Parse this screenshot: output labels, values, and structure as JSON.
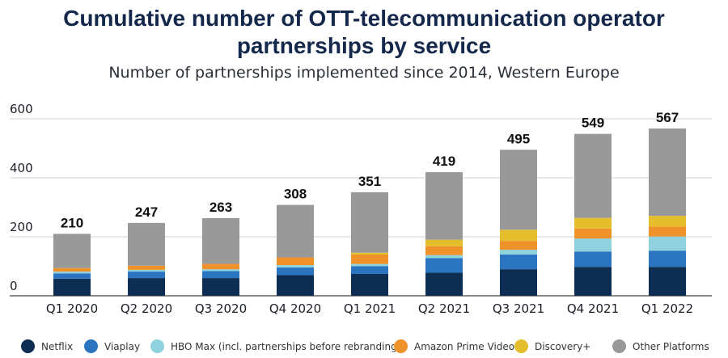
{
  "chart_data": {
    "type": "stacked-bar",
    "title_line1": "Cumulative number of OTT-telecommunication operator",
    "title_line2": "partnerships by service",
    "subtitle": "Number of partnerships implemented since 2014, Western Europe",
    "categories": [
      "Q1 2020",
      "Q2 2020",
      "Q3 2020",
      "Q4 2020",
      "Q1 2021",
      "Q2 2021",
      "Q3 2021",
      "Q4 2021",
      "Q1 2022"
    ],
    "totals": [
      210,
      247,
      263,
      308,
      351,
      419,
      495,
      549,
      567
    ],
    "yticks": [
      0,
      200,
      400,
      600
    ],
    "ylim": [
      0,
      600
    ],
    "series": [
      {
        "name": "Netflix",
        "color": "#0d2d52",
        "values": [
          58,
          60,
          60,
          70,
          74,
          78,
          90,
          98,
          98
        ]
      },
      {
        "name": "Viaplay",
        "color": "#2b74bf",
        "values": [
          18,
          22,
          24,
          26,
          26,
          50,
          50,
          52,
          55
        ]
      },
      {
        "name": "HBO Max (incl. partnerships before rebranding)",
        "color": "#8fd2de",
        "values": [
          6,
          6,
          6,
          8,
          8,
          10,
          16,
          44,
          48
        ]
      },
      {
        "name": "Amazon Prime Video",
        "color": "#f0922a",
        "values": [
          12,
          14,
          18,
          26,
          32,
          30,
          30,
          34,
          34
        ]
      },
      {
        "name": "Discovery+",
        "color": "#e5be2d",
        "values": [
          0,
          0,
          0,
          0,
          6,
          22,
          38,
          36,
          36
        ]
      },
      {
        "name": "Other Platforms",
        "color": "#999999",
        "values": [
          116,
          145,
          155,
          178,
          205,
          229,
          271,
          285,
          296
        ]
      }
    ]
  }
}
